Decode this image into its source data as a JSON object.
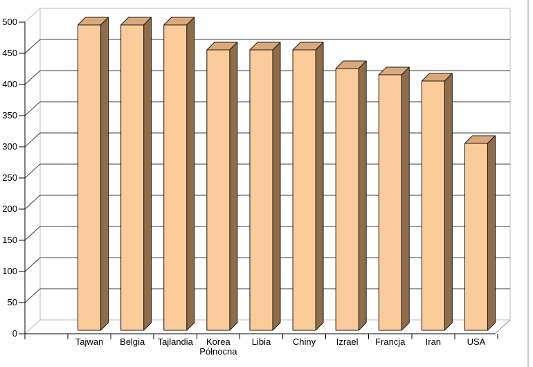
{
  "window": {
    "background": "#ffffff",
    "right_border_color": "#c9c9c9"
  },
  "chart_data": {
    "type": "bar",
    "projection": "3d-column",
    "title": "",
    "xlabel": "",
    "ylabel": "",
    "categories": [
      "Tajwan",
      "Belgia",
      "Tajlandia",
      "Korea Północna",
      "Libia",
      "Chiny",
      "Izrael",
      "Francja",
      "Iran",
      "USA"
    ],
    "category_label_lines": [
      [
        "Tajwan"
      ],
      [
        "Belgia"
      ],
      [
        "Tajlandia"
      ],
      [
        "Korea",
        "Północna"
      ],
      [
        "Libia"
      ],
      [
        "Chiny"
      ],
      [
        "Izrael"
      ],
      [
        "Francja"
      ],
      [
        "Iran"
      ],
      [
        "USA"
      ]
    ],
    "values": [
      490,
      490,
      490,
      450,
      450,
      450,
      420,
      410,
      400,
      300
    ],
    "series": [
      {
        "name": "",
        "values": [
          490,
          490,
          490,
          450,
          450,
          450,
          420,
          410,
          400,
          300
        ]
      }
    ],
    "ylim": [
      0,
      500
    ],
    "ytick_step": 50,
    "ytick_labels": [
      "0",
      "50",
      "100",
      "150",
      "200",
      "250",
      "300",
      "350",
      "400",
      "450",
      "500"
    ],
    "grid": true,
    "legend": false,
    "colors": {
      "bar_front": "#fbcb99",
      "bar_top": "#d9a97b",
      "bar_side": "#8f6d49",
      "bar_outline": "#1a1a1a",
      "gridline": "#3c3c3c",
      "wall_edge": "#bbbbbb",
      "floor_right_edge": "#8a8a8a",
      "axis": "#000000",
      "label": "#000000",
      "background": "#ffffff"
    }
  }
}
